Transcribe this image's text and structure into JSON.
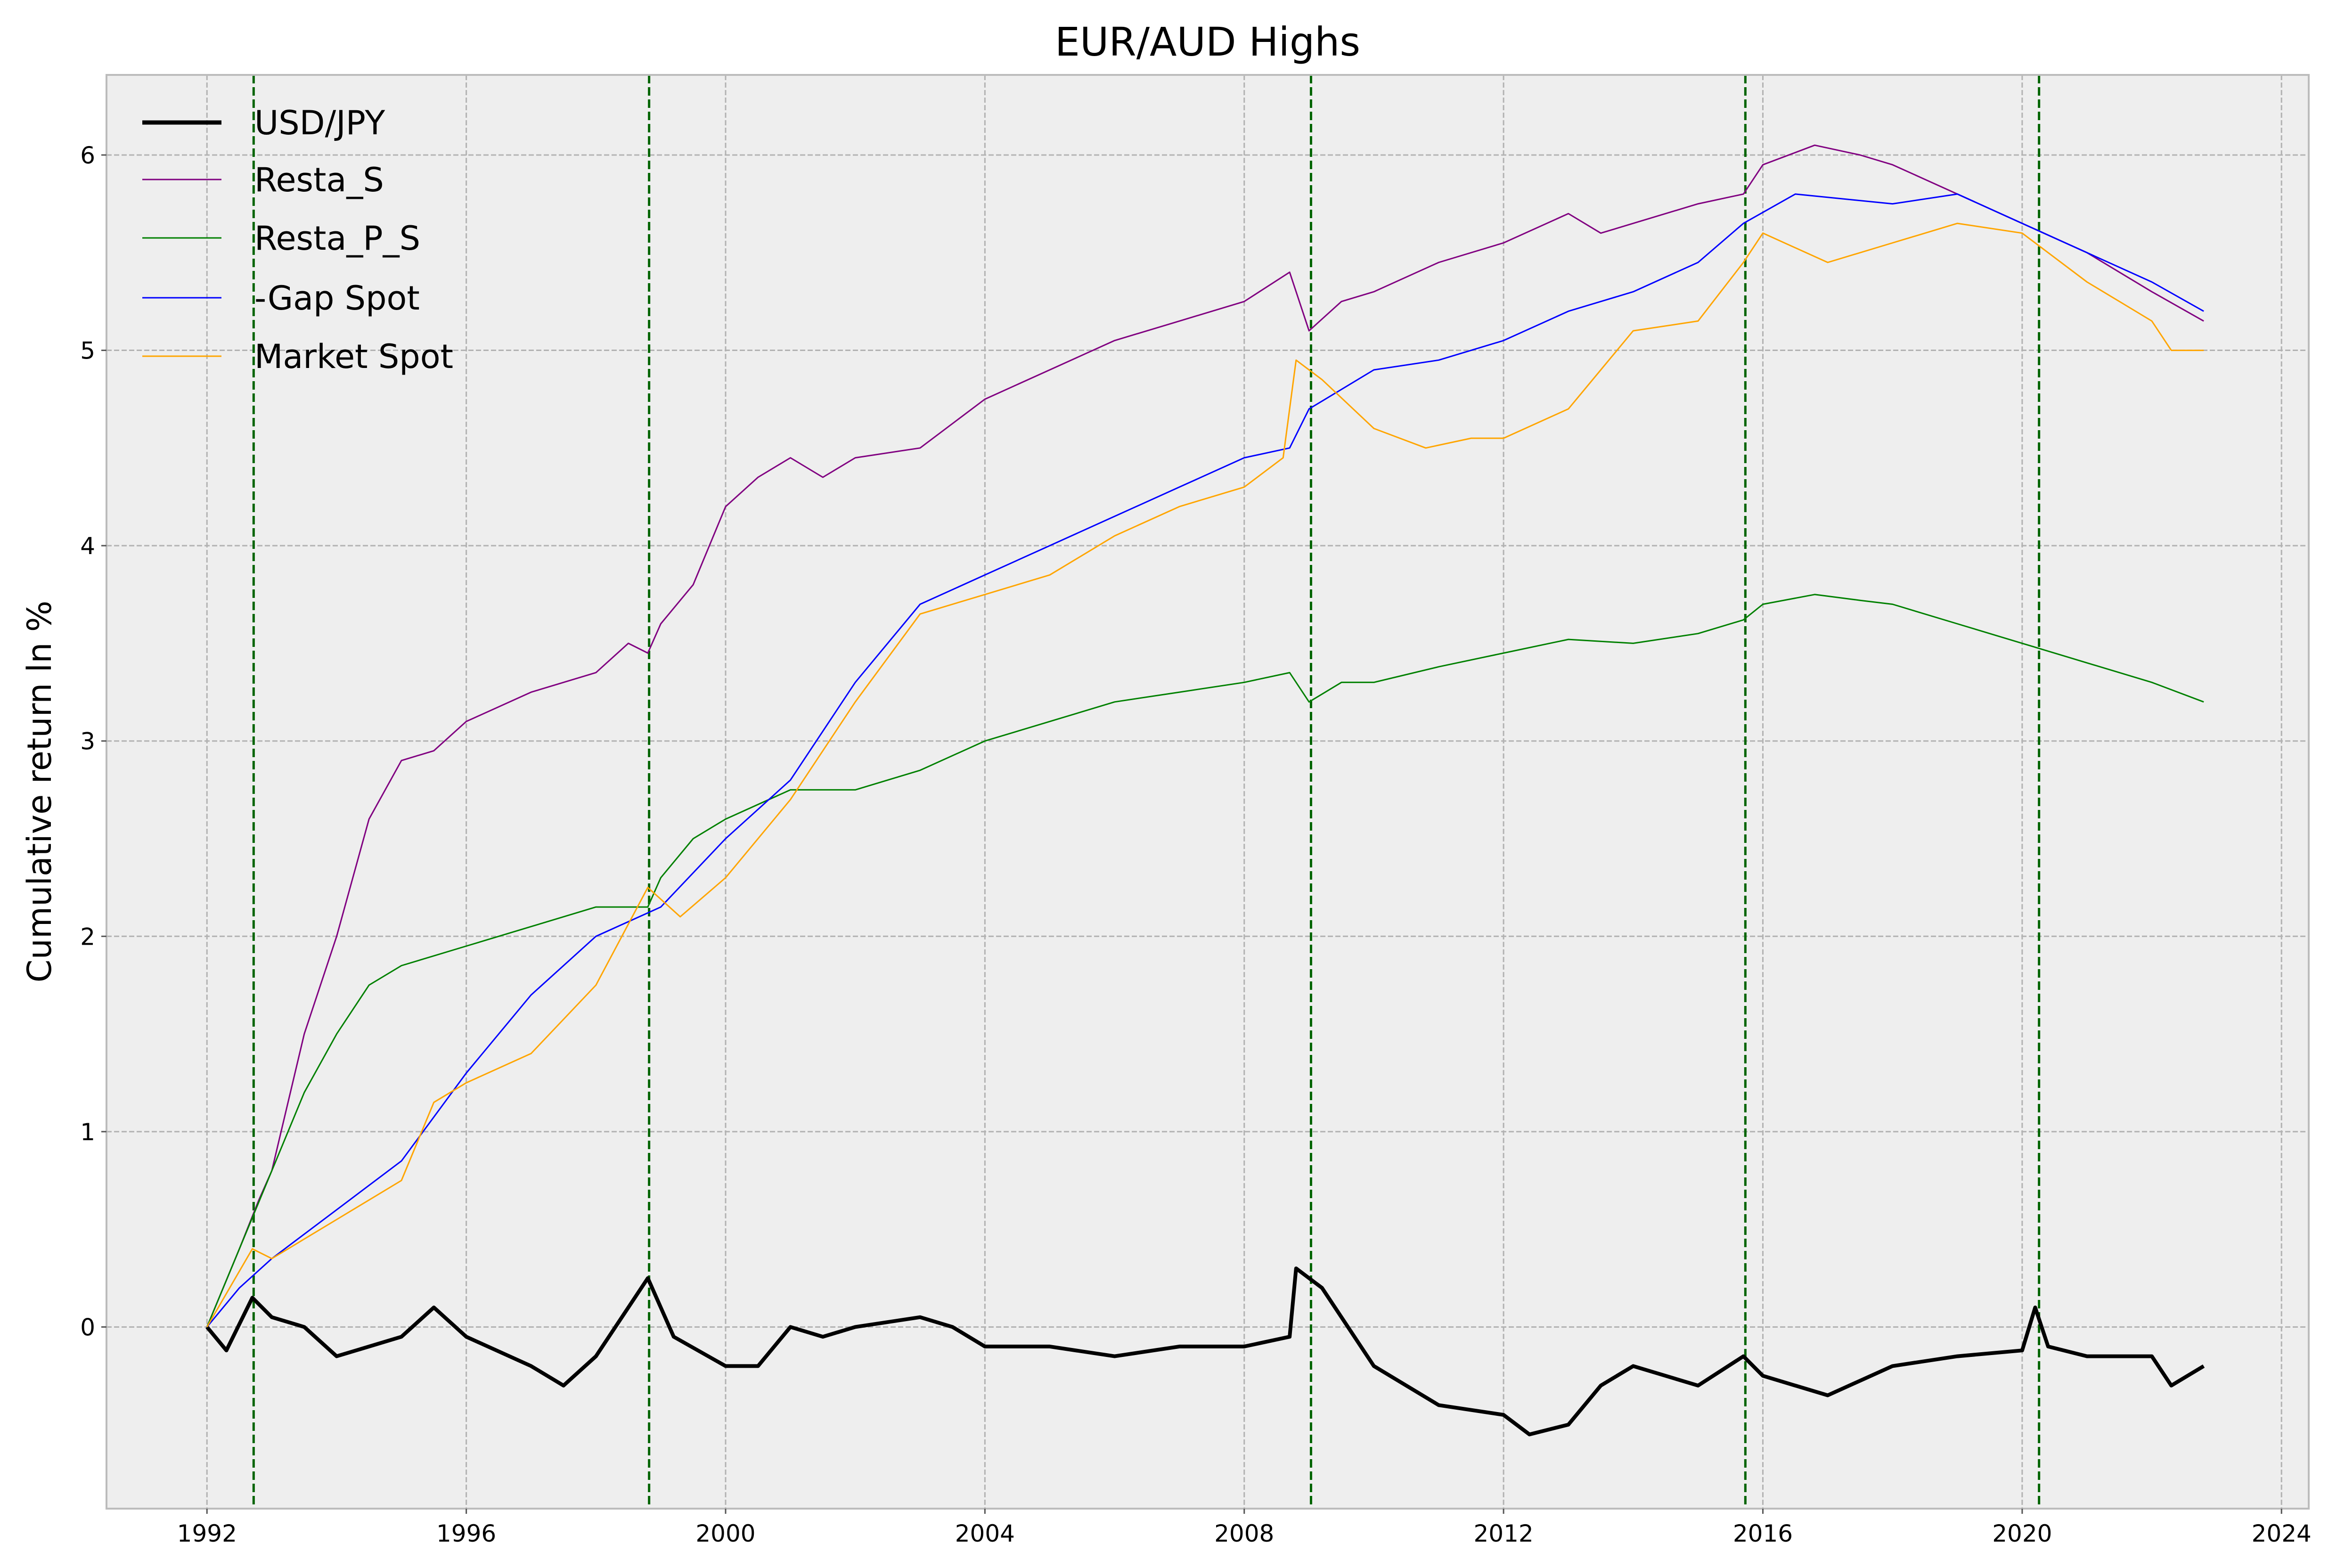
{
  "chart_data": {
    "type": "line",
    "title": "EUR/AUD Highs",
    "xlabel": "",
    "ylabel": "Cumulative return ln %",
    "xlim": [
      1990.45,
      2024.42
    ],
    "ylim": [
      -0.93,
      6.41
    ],
    "xticks": [
      1992,
      1996,
      2000,
      2004,
      2008,
      2012,
      2016,
      2020,
      2024
    ],
    "xtick_labels": [
      "1992",
      "1996",
      "2000",
      "2004",
      "2008",
      "2012",
      "2016",
      "2020",
      "2024"
    ],
    "yticks": [
      0,
      1,
      2,
      3,
      4,
      5,
      6
    ],
    "ytick_labels": [
      "0",
      "1",
      "2",
      "3",
      "4",
      "5",
      "6"
    ],
    "grid": true,
    "legend_position": "top-left",
    "vlines": [
      1992.72,
      1998.82,
      2009.03,
      2015.73,
      2020.26
    ],
    "vline_color": "#006400",
    "series": [
      {
        "name": "USD/JPY",
        "color": "#000000",
        "width": "thick",
        "x": [
          1992,
          1992.3,
          1992.7,
          1993,
          1993.5,
          1994,
          1995,
          1995.5,
          1996,
          1997,
          1997.5,
          1998,
          1998.8,
          1999.2,
          2000,
          2000.5,
          2001,
          2001.5,
          2002,
          2003,
          2003.5,
          2004,
          2005,
          2006,
          2007,
          2008,
          2008.7,
          2008.8,
          2009.2,
          2010,
          2011,
          2012,
          2012.4,
          2013,
          2013.5,
          2014,
          2015,
          2015.7,
          2016,
          2017,
          2018,
          2019,
          2020,
          2020.2,
          2020.4,
          2021,
          2022,
          2022.3,
          2022.8
        ],
        "y": [
          0,
          -0.12,
          0.15,
          0.05,
          0.0,
          -0.15,
          -0.05,
          0.1,
          -0.05,
          -0.2,
          -0.3,
          -0.15,
          0.25,
          -0.05,
          -0.2,
          -0.2,
          0.0,
          -0.05,
          0.0,
          0.05,
          0.0,
          -0.1,
          -0.1,
          -0.15,
          -0.1,
          -0.1,
          -0.05,
          0.3,
          0.2,
          -0.2,
          -0.4,
          -0.45,
          -0.55,
          -0.5,
          -0.3,
          -0.2,
          -0.3,
          -0.15,
          -0.25,
          -0.35,
          -0.2,
          -0.15,
          -0.12,
          0.1,
          -0.1,
          -0.15,
          -0.15,
          -0.3,
          -0.2
        ]
      },
      {
        "name": "Resta_S",
        "color": "#800080",
        "width": "thin",
        "x": [
          1992,
          1992.5,
          1992.8,
          1993,
          1993.5,
          1994,
          1994.5,
          1995,
          1995.5,
          1996,
          1997,
          1998,
          1998.5,
          1998.8,
          1999,
          1999.5,
          2000,
          2000.5,
          2001,
          2001.5,
          2002,
          2003,
          2004,
          2005,
          2006,
          2007,
          2008,
          2008.7,
          2009,
          2009.5,
          2010,
          2011,
          2012,
          2013,
          2013.5,
          2014,
          2015,
          2015.7,
          2016,
          2016.8,
          2017.5,
          2018,
          2019,
          2020,
          2021,
          2022,
          2022.8
        ],
        "y": [
          0,
          0.4,
          0.65,
          0.8,
          1.5,
          2.0,
          2.6,
          2.9,
          2.95,
          3.1,
          3.25,
          3.35,
          3.5,
          3.45,
          3.6,
          3.8,
          4.2,
          4.35,
          4.45,
          4.35,
          4.45,
          4.5,
          4.75,
          4.9,
          5.05,
          5.15,
          5.25,
          5.4,
          5.1,
          5.25,
          5.3,
          5.45,
          5.55,
          5.7,
          5.6,
          5.65,
          5.75,
          5.8,
          5.95,
          6.05,
          6.0,
          5.95,
          5.8,
          5.65,
          5.5,
          5.3,
          5.15
        ]
      },
      {
        "name": "Resta_P_S",
        "color": "#008000",
        "width": "thin",
        "x": [
          1992,
          1992.5,
          1993,
          1993.5,
          1994,
          1994.5,
          1995,
          1996,
          1997,
          1998,
          1998.8,
          1999,
          1999.5,
          2000,
          2001,
          2002,
          2003,
          2004,
          2005,
          2006,
          2007,
          2008,
          2008.7,
          2009,
          2009.5,
          2010,
          2011,
          2012,
          2013,
          2014,
          2015,
          2015.7,
          2016,
          2016.8,
          2017.5,
          2018,
          2019,
          2020,
          2021,
          2022,
          2022.8
        ],
        "y": [
          0,
          0.4,
          0.8,
          1.2,
          1.5,
          1.75,
          1.85,
          1.95,
          2.05,
          2.15,
          2.15,
          2.3,
          2.5,
          2.6,
          2.75,
          2.75,
          2.85,
          3.0,
          3.1,
          3.2,
          3.25,
          3.3,
          3.35,
          3.2,
          3.3,
          3.3,
          3.38,
          3.45,
          3.52,
          3.5,
          3.55,
          3.62,
          3.7,
          3.75,
          3.72,
          3.7,
          3.6,
          3.5,
          3.4,
          3.3,
          3.2
        ]
      },
      {
        "name": "-Gap Spot",
        "color": "#0000ff",
        "width": "thin",
        "x": [
          1992,
          1992.5,
          1993,
          1994,
          1995,
          1996,
          1997,
          1998,
          1999,
          2000,
          2001,
          2002,
          2003,
          2004,
          2005,
          2006,
          2007,
          2008,
          2008.7,
          2009,
          2010,
          2011,
          2012,
          2013,
          2014,
          2015,
          2015.7,
          2016.5,
          2018,
          2019,
          2020,
          2021,
          2022,
          2022.8
        ],
        "y": [
          0,
          0.2,
          0.35,
          0.6,
          0.85,
          1.3,
          1.7,
          2.0,
          2.15,
          2.5,
          2.8,
          3.3,
          3.7,
          3.85,
          4.0,
          4.15,
          4.3,
          4.45,
          4.5,
          4.7,
          4.9,
          4.95,
          5.05,
          5.2,
          5.3,
          5.45,
          5.65,
          5.8,
          5.75,
          5.8,
          5.65,
          5.5,
          5.35,
          5.2
        ]
      },
      {
        "name": "Market Spot",
        "color": "#ffa500",
        "width": "thin",
        "x": [
          1992,
          1992.7,
          1993,
          1994,
          1995,
          1995.5,
          1996,
          1997,
          1998,
          1998.8,
          1999.3,
          2000,
          2001,
          2002,
          2003,
          2004,
          2005,
          2006,
          2007,
          2008,
          2008.6,
          2008.8,
          2009.2,
          2010,
          2010.8,
          2011.5,
          2012,
          2013,
          2013.5,
          2014,
          2015,
          2015.7,
          2016,
          2017,
          2018,
          2019,
          2020,
          2021,
          2021.5,
          2022,
          2022.3,
          2022.8
        ],
        "y": [
          0,
          0.4,
          0.35,
          0.55,
          0.75,
          1.15,
          1.25,
          1.4,
          1.75,
          2.25,
          2.1,
          2.3,
          2.7,
          3.2,
          3.65,
          3.75,
          3.85,
          4.05,
          4.2,
          4.3,
          4.45,
          4.95,
          4.85,
          4.6,
          4.5,
          4.55,
          4.55,
          4.7,
          4.9,
          5.1,
          5.15,
          5.45,
          5.6,
          5.45,
          5.55,
          5.65,
          5.6,
          5.35,
          5.25,
          5.15,
          5.0,
          5.0
        ]
      }
    ]
  }
}
